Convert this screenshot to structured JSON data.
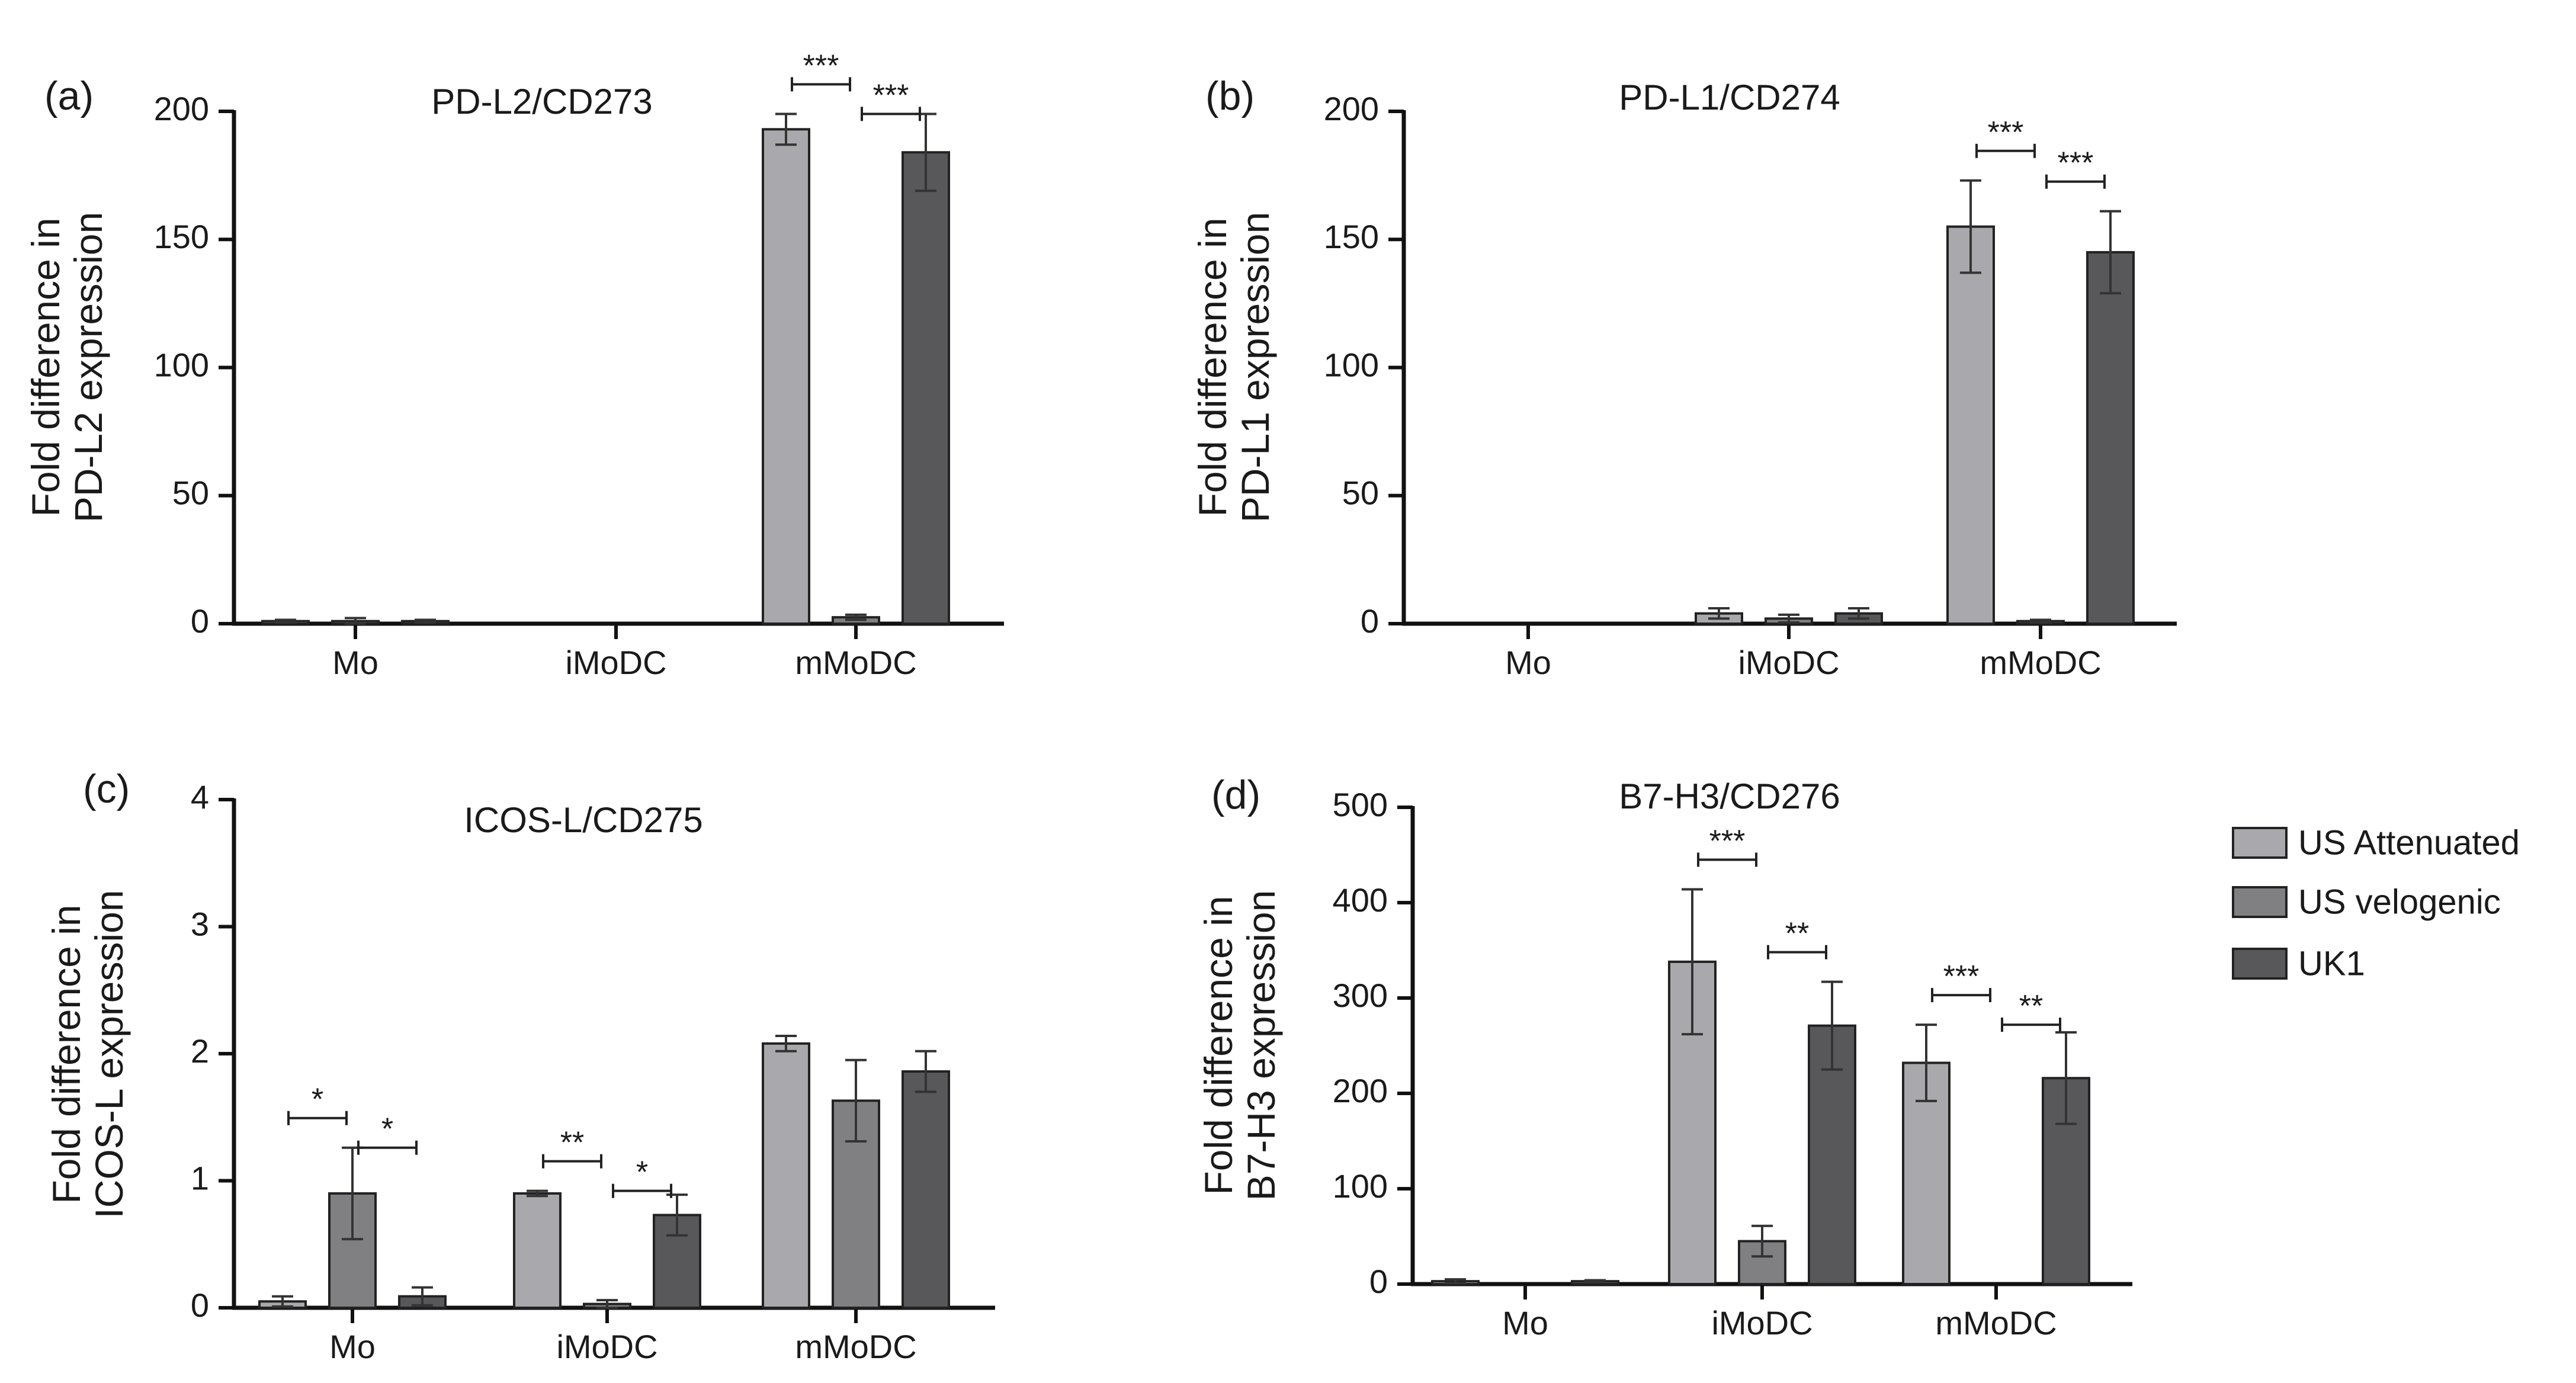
{
  "figure": {
    "legend": [
      {
        "name": "US Attenuated",
        "color": "#a9a9ad"
      },
      {
        "name": "US velogenic",
        "color": "#808083"
      },
      {
        "name": "UK1",
        "color": "#58585b"
      }
    ]
  },
  "chart_data": [
    {
      "type": "bar",
      "panel_label": "(a)",
      "title": "PD-L2/CD273",
      "ylabel_line1": "Fold difference in",
      "ylabel_line2": "PD-L2 expression",
      "xlabel": "",
      "categories": [
        "Mo",
        "iMoDC",
        "mMoDC"
      ],
      "ylim": [
        0,
        200
      ],
      "yticks": [
        0,
        50,
        100,
        150,
        200
      ],
      "series": [
        {
          "name": "US Attenuated",
          "values": [
            1,
            0,
            193
          ],
          "errors": [
            0.5,
            0,
            6
          ]
        },
        {
          "name": "US velogenic",
          "values": [
            1,
            0,
            2.5
          ],
          "errors": [
            1.2,
            0,
            1
          ]
        },
        {
          "name": "UK1",
          "values": [
            1,
            0,
            184
          ],
          "errors": [
            0.5,
            0,
            15
          ]
        }
      ],
      "significance": [
        {
          "category": "mMoDC",
          "from": 0,
          "to": 1,
          "label": "***"
        },
        {
          "category": "mMoDC",
          "from": 1,
          "to": 2,
          "label": "***"
        }
      ]
    },
    {
      "type": "bar",
      "panel_label": "(b)",
      "title": "PD-L1/CD274",
      "ylabel_line1": "Fold difference in",
      "ylabel_line2": "PD-L1 expression",
      "xlabel": "",
      "categories": [
        "Mo",
        "iMoDC",
        "mMoDC"
      ],
      "ylim": [
        0,
        200
      ],
      "yticks": [
        0,
        50,
        100,
        150,
        200
      ],
      "series": [
        {
          "name": "US Attenuated",
          "values": [
            0,
            4,
            155
          ],
          "errors": [
            0,
            2,
            18
          ]
        },
        {
          "name": "US velogenic",
          "values": [
            0,
            2,
            1
          ],
          "errors": [
            0,
            1.5,
            0.5
          ]
        },
        {
          "name": "UK1",
          "values": [
            0,
            4,
            145
          ],
          "errors": [
            0,
            2,
            16
          ]
        }
      ],
      "significance": [
        {
          "category": "mMoDC",
          "from": 0,
          "to": 1,
          "label": "***"
        },
        {
          "category": "mMoDC",
          "from": 1,
          "to": 2,
          "label": "***"
        }
      ]
    },
    {
      "type": "bar",
      "panel_label": "(c)",
      "title": "ICOS-L/CD275",
      "ylabel_line1": "Fold difference in",
      "ylabel_line2": "ICOS-L expression",
      "xlabel": "",
      "categories": [
        "Mo",
        "iMoDC",
        "mMoDC"
      ],
      "ylim": [
        0,
        4
      ],
      "yticks": [
        0,
        1,
        2,
        3,
        4
      ],
      "series": [
        {
          "name": "US Attenuated",
          "values": [
            0.05,
            0.9,
            2.08
          ],
          "errors": [
            0.04,
            0.02,
            0.06
          ]
        },
        {
          "name": "US velogenic",
          "values": [
            0.9,
            0.03,
            1.63
          ],
          "errors": [
            0.36,
            0.03,
            0.32
          ]
        },
        {
          "name": "UK1",
          "values": [
            0.09,
            0.73,
            1.86
          ],
          "errors": [
            0.07,
            0.16,
            0.16
          ]
        }
      ],
      "significance": [
        {
          "category": "Mo",
          "from": 0,
          "to": 1,
          "label": "*"
        },
        {
          "category": "Mo",
          "from": 1,
          "to": 2,
          "label": "*"
        },
        {
          "category": "iMoDC",
          "from": 0,
          "to": 1,
          "label": "**"
        },
        {
          "category": "iMoDC",
          "from": 1,
          "to": 2,
          "label": "*"
        }
      ]
    },
    {
      "type": "bar",
      "panel_label": "(d)",
      "title": "B7-H3/CD276",
      "ylabel_line1": "Fold difference in",
      "ylabel_line2": "B7-H3 expression",
      "xlabel": "",
      "categories": [
        "Mo",
        "iMoDC",
        "mMoDC"
      ],
      "ylim": [
        0,
        500
      ],
      "yticks": [
        0,
        100,
        200,
        300,
        400,
        500
      ],
      "series": [
        {
          "name": "US Attenuated",
          "values": [
            3,
            338,
            232
          ],
          "errors": [
            2,
            76,
            40
          ]
        },
        {
          "name": "US velogenic",
          "values": [
            0,
            45,
            0
          ],
          "errors": [
            0,
            16,
            0
          ]
        },
        {
          "name": "UK1",
          "values": [
            3,
            271,
            216
          ],
          "errors": [
            1,
            46,
            48
          ]
        }
      ],
      "significance": [
        {
          "category": "iMoDC",
          "from": 0,
          "to": 1,
          "label": "***"
        },
        {
          "category": "iMoDC",
          "from": 1,
          "to": 2,
          "label": "**"
        },
        {
          "category": "mMoDC",
          "from": 0,
          "to": 1,
          "label": "***"
        },
        {
          "category": "mMoDC",
          "from": 1,
          "to": 2,
          "label": "**"
        }
      ]
    }
  ]
}
